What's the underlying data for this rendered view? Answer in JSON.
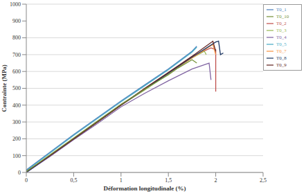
{
  "chart_data": {
    "type": "line",
    "xlabel": "Déformation longitudinale (%)",
    "ylabel": "Contrainte (MPa)",
    "xlim": [
      0,
      2.5
    ],
    "xticks": [
      0,
      {
        "value": 0.5,
        "label": "0,5"
      },
      1,
      {
        "value": 1.5,
        "label": "1,5"
      },
      2,
      {
        "value": 2.5,
        "label": "2,5"
      }
    ],
    "ylim": [
      0,
      1000
    ],
    "yticks": [
      0,
      100,
      200,
      300,
      400,
      500,
      600,
      700,
      800,
      900,
      1000
    ],
    "grid": true,
    "legend": "upper right",
    "series": [
      {
        "name": "T0_1",
        "color": "#4f81bd",
        "x": [
          0,
          0.25,
          0.5,
          0.75,
          1,
          1.25,
          1.5,
          1.75,
          1.8
        ],
        "values": [
          15,
          120,
          225,
          325,
          425,
          520,
          615,
          720,
          750
        ]
      },
      {
        "name": "T0_2",
        "color": "#c0504d",
        "x": [
          0,
          0.25,
          0.5,
          0.75,
          1,
          1.25,
          1.5,
          1.75,
          1.95,
          2.0,
          2.0
        ],
        "values": [
          5,
          100,
          200,
          300,
          400,
          495,
          590,
          690,
          740,
          730,
          480
        ]
      },
      {
        "name": "T0_3",
        "color": "#9bbb59",
        "x": [
          0,
          0.25,
          0.5,
          0.75,
          1,
          1.25,
          1.5,
          1.75,
          1.88,
          1.9
        ],
        "values": [
          5,
          100,
          200,
          300,
          400,
          490,
          585,
          680,
          720,
          700
        ]
      },
      {
        "name": "T0_4",
        "color": "#8064a2",
        "x": [
          0,
          0.25,
          0.5,
          0.75,
          1,
          1.25,
          1.5,
          1.75,
          1.93,
          1.95
        ],
        "values": [
          0,
          95,
          195,
          290,
          390,
          470,
          545,
          615,
          650,
          550
        ]
      },
      {
        "name": "T0_5",
        "color": "#4bacc6",
        "x": [
          0,
          0.25,
          0.5,
          0.75,
          1,
          1.25,
          1.5,
          1.75,
          1.8
        ],
        "values": [
          10,
          115,
          220,
          320,
          420,
          515,
          610,
          715,
          745
        ]
      },
      {
        "name": "T0_7",
        "color": "#f79646",
        "x": [
          0,
          0.25,
          0.5,
          0.75,
          1,
          1.25,
          1.5,
          1.75,
          1.97,
          2.0
        ],
        "values": [
          5,
          100,
          200,
          300,
          400,
          495,
          590,
          680,
          760,
          700
        ]
      },
      {
        "name": "T0_8",
        "color": "#1f3864",
        "x": [
          0,
          0.25,
          0.5,
          0.75,
          1,
          1.25,
          1.5,
          1.75,
          2.0,
          2.03,
          2.05,
          2.08
        ],
        "values": [
          0,
          100,
          200,
          300,
          400,
          495,
          590,
          685,
          775,
          780,
          700,
          710
        ]
      },
      {
        "name": "T0_9",
        "color": "#632523",
        "x": [
          0,
          0.25,
          0.5,
          0.75,
          1,
          1.25,
          1.5,
          1.75,
          1.97,
          2.0
        ],
        "values": [
          5,
          100,
          200,
          300,
          400,
          500,
          595,
          690,
          780,
          720
        ]
      },
      {
        "name": "T0_10",
        "color": "#77933c",
        "x": [
          0,
          0.25,
          0.5,
          0.75,
          1,
          1.25,
          1.5,
          1.6,
          1.75,
          1.8
        ],
        "values": [
          5,
          105,
          205,
          305,
          405,
          495,
          580,
          620,
          670,
          650
        ]
      }
    ]
  }
}
